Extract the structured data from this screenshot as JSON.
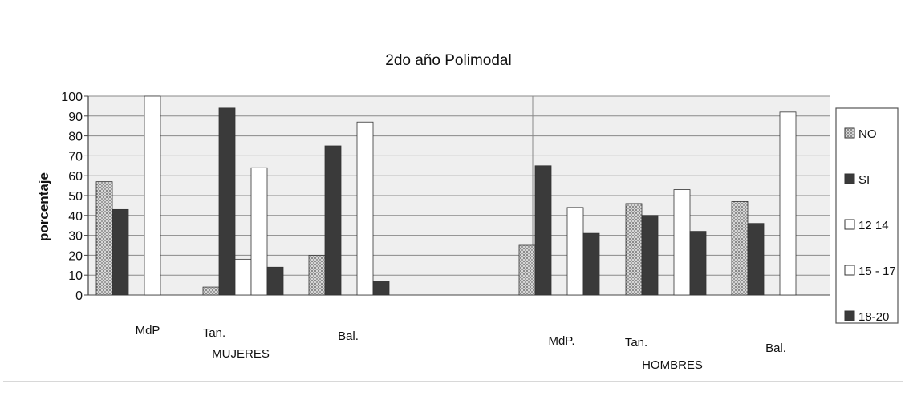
{
  "chart_data": {
    "type": "bar",
    "title": "2do año Polimodal",
    "xlabel": "",
    "ylabel": "porcentaje",
    "ylim": [
      0,
      100
    ],
    "yticks": [
      0,
      10,
      20,
      30,
      40,
      50,
      60,
      70,
      80,
      90,
      100
    ],
    "grid": true,
    "legend_position": "right",
    "groups": [
      {
        "label": "MUJERES",
        "categories": [
          "MdP",
          "Tan.",
          "Bal."
        ]
      },
      {
        "label": "HOMBRES",
        "categories": [
          "MdP.",
          "Tan.",
          "Bal."
        ]
      }
    ],
    "categories": [
      "MdP",
      "Tan.",
      "Bal.",
      "MdP.",
      "Tan.",
      "Bal."
    ],
    "series": [
      {
        "name": "NO",
        "color": "#b8b8b8",
        "pattern": "dotted",
        "values": [
          57,
          4,
          20,
          25,
          46,
          47
        ]
      },
      {
        "name": "SI",
        "color": "#3a3a3a",
        "pattern": "solid",
        "values": [
          43,
          94,
          75,
          65,
          40,
          36
        ]
      },
      {
        "name": "12 14",
        "color": "#ffffff",
        "pattern": "none",
        "values": [
          0,
          18,
          0,
          0,
          0,
          0
        ]
      },
      {
        "name": "15 - 17",
        "color": "#ffffff",
        "pattern": "none",
        "values": [
          100,
          64,
          87,
          44,
          53,
          92
        ]
      },
      {
        "name": "18-20",
        "color": "#3a3a3a",
        "pattern": "solid",
        "values": [
          0,
          14,
          7,
          31,
          32,
          0
        ]
      }
    ]
  }
}
